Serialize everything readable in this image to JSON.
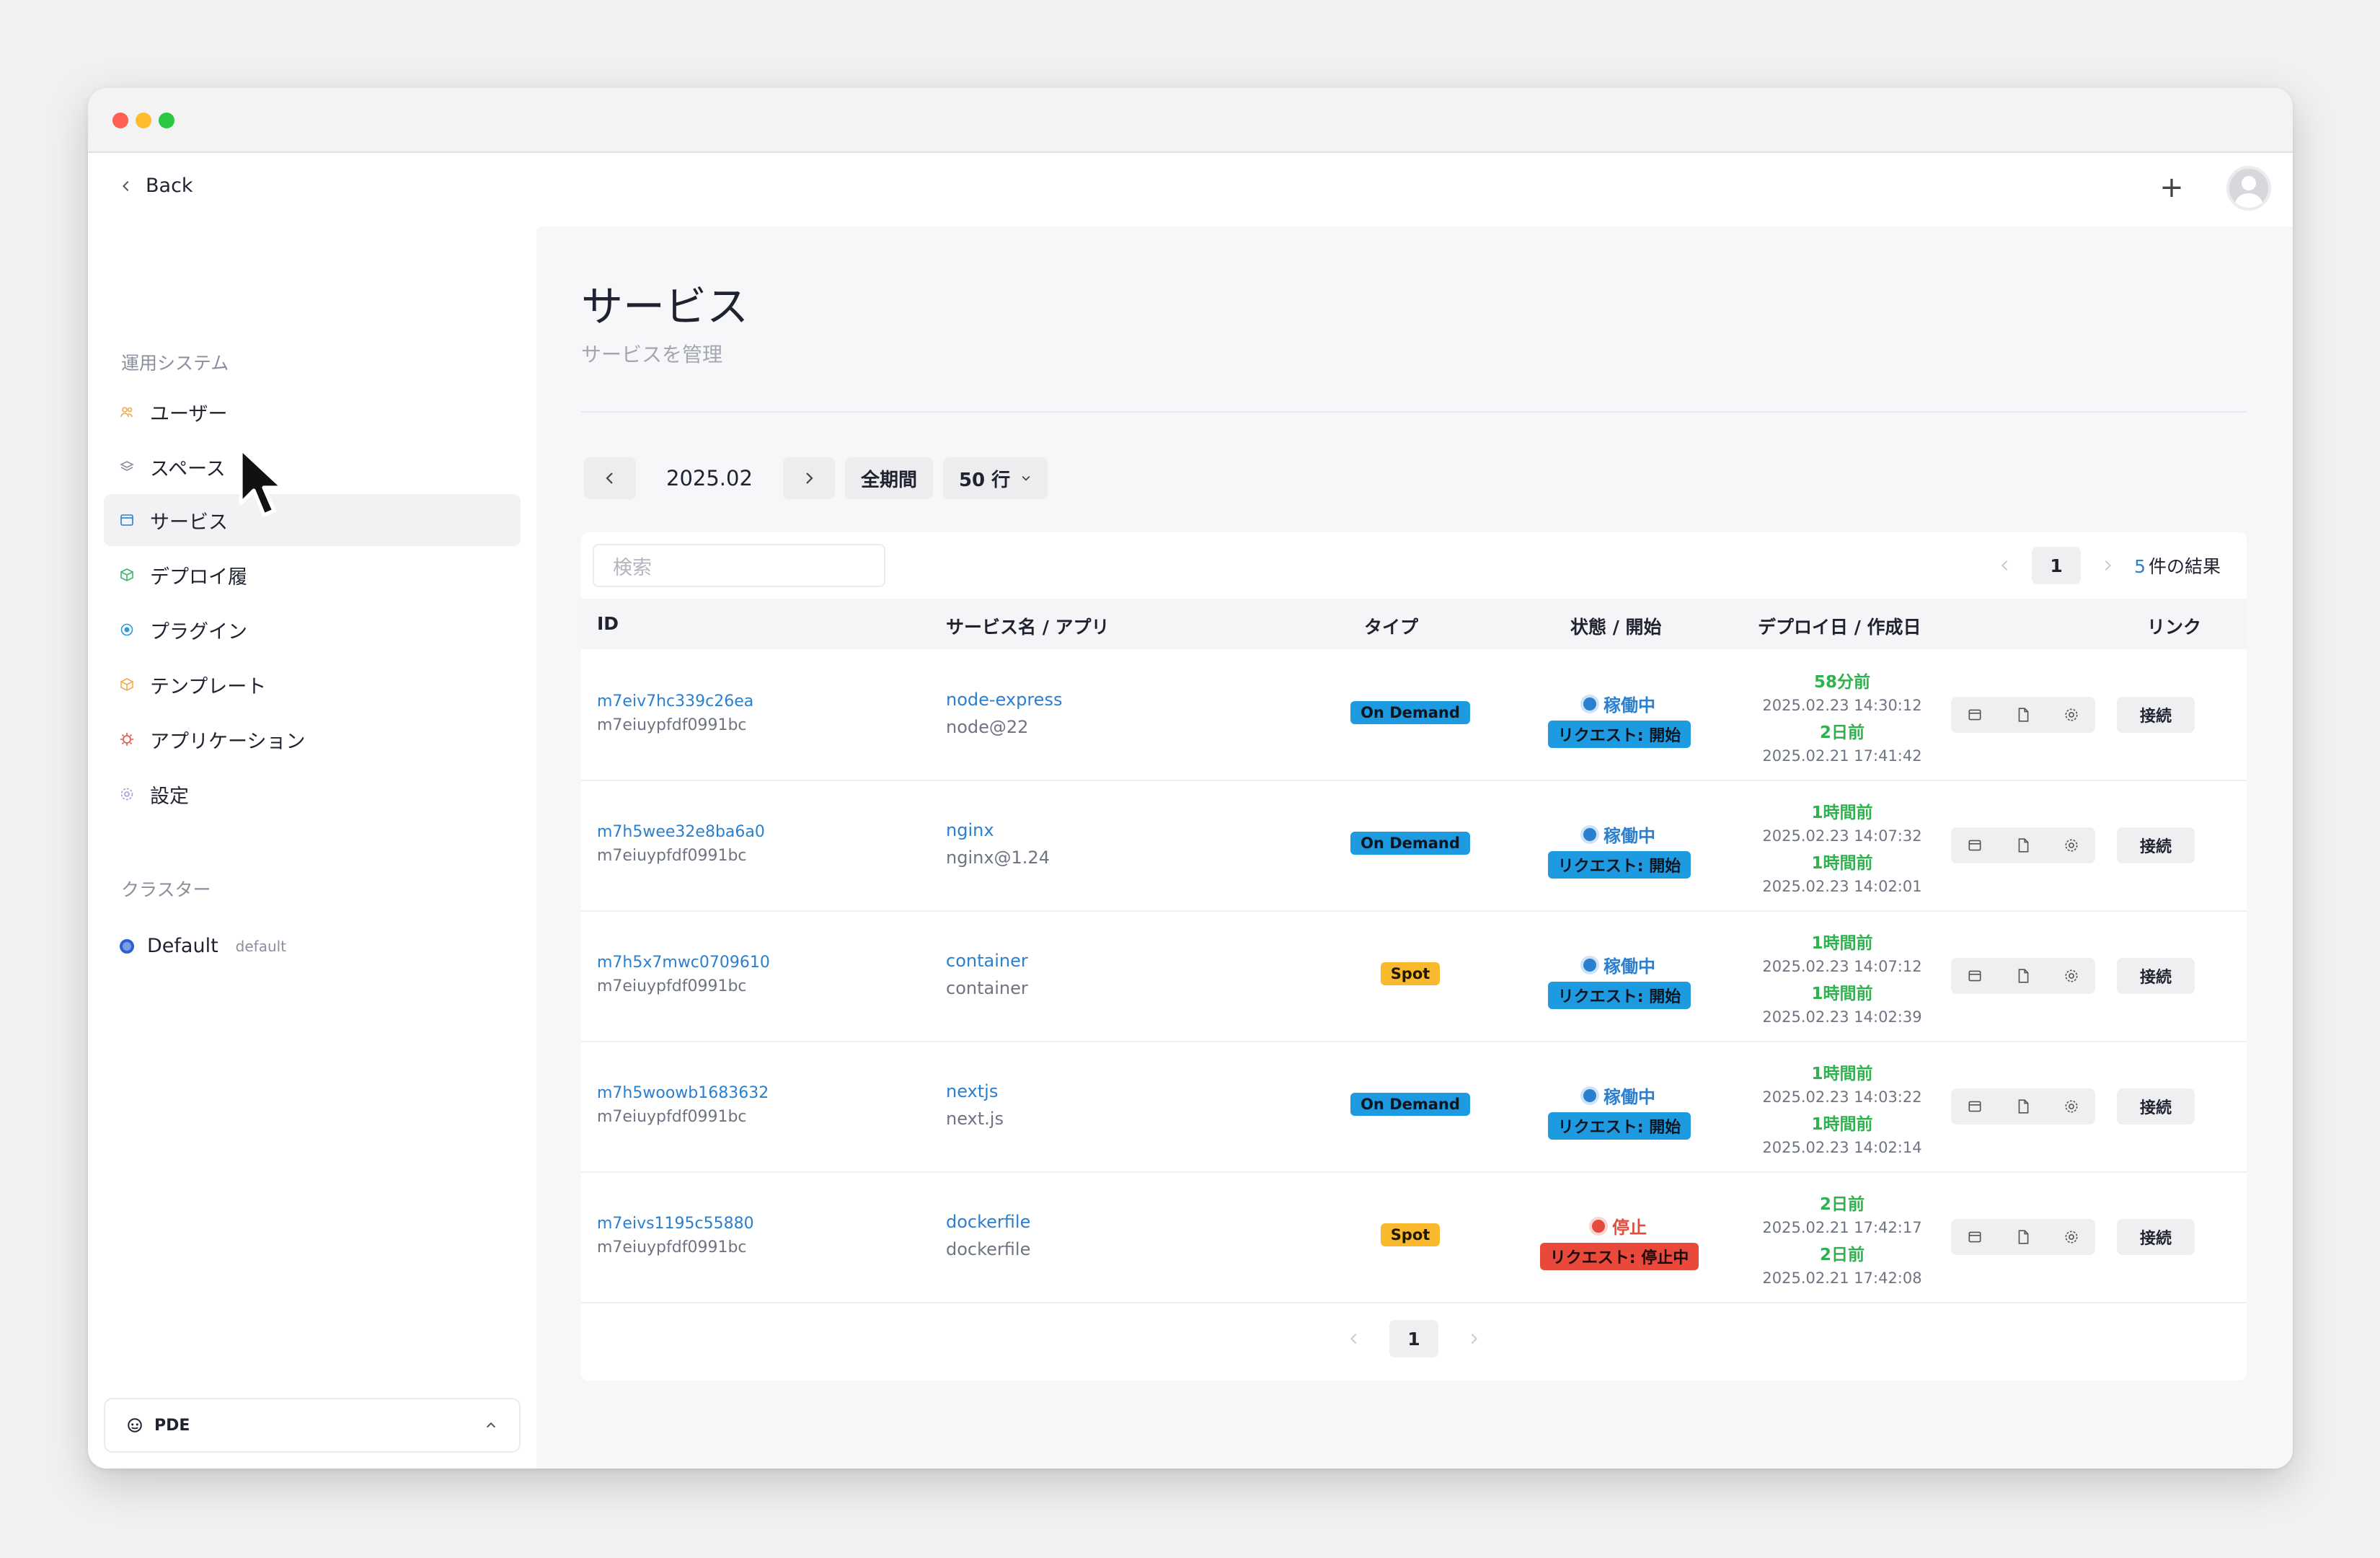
{
  "nav": {
    "back_label": "Back"
  },
  "sidebar": {
    "section_system": "運用システム",
    "items": [
      {
        "label": "ユーザー",
        "icon": "users-icon"
      },
      {
        "label": "スペース",
        "icon": "layers-icon"
      },
      {
        "label": "サービス",
        "icon": "window-icon"
      },
      {
        "label": "デプロイ履",
        "icon": "box-icon"
      },
      {
        "label": "プラグイン",
        "icon": "plugin-icon"
      },
      {
        "label": "テンプレート",
        "icon": "template-icon"
      },
      {
        "label": "アプリケーション",
        "icon": "app-icon"
      },
      {
        "label": "設定",
        "icon": "gear-icon"
      }
    ],
    "section_cluster": "クラスター",
    "cluster": {
      "name": "Default",
      "sub": "default"
    },
    "footer": {
      "label": "PDE"
    }
  },
  "page": {
    "title": "サービス",
    "subtitle": "サービスを管理"
  },
  "toolbar": {
    "month": "2025.02",
    "all_period": "全期間",
    "rows": "50 行"
  },
  "table": {
    "search_placeholder": "検索",
    "page": "1",
    "result_count": "5",
    "result_suffix": "件の結果",
    "headers": {
      "id": "ID",
      "service": "サービス名 / アプリ",
      "type": "タイプ",
      "status": "状態 / 開始",
      "dates": "デプロイ日 / 作成日",
      "link": "リンク"
    },
    "rows": [
      {
        "id": "m7eiv7hc339c26ea",
        "owner": "m7eiuypfdf0991bc",
        "service": "node-express",
        "app": "node@22",
        "type": "On Demand",
        "status": "稼働中",
        "request": "リクエスト: 開始",
        "deploy_rel": "58分前",
        "deploy_abs": "2025.02.23 14:30:12",
        "created_rel": "2日前",
        "created_abs": "2025.02.21 17:41:42",
        "connect": "接続"
      },
      {
        "id": "m7h5wee32e8ba6a0",
        "owner": "m7eiuypfdf0991bc",
        "service": "nginx",
        "app": "nginx@1.24",
        "type": "On Demand",
        "status": "稼働中",
        "request": "リクエスト: 開始",
        "deploy_rel": "1時間前",
        "deploy_abs": "2025.02.23 14:07:32",
        "created_rel": "1時間前",
        "created_abs": "2025.02.23 14:02:01",
        "connect": "接続"
      },
      {
        "id": "m7h5x7mwc0709610",
        "owner": "m7eiuypfdf0991bc",
        "service": "container",
        "app": "container",
        "type": "Spot",
        "status": "稼働中",
        "request": "リクエスト: 開始",
        "deploy_rel": "1時間前",
        "deploy_abs": "2025.02.23 14:07:12",
        "created_rel": "1時間前",
        "created_abs": "2025.02.23 14:02:39",
        "connect": "接続"
      },
      {
        "id": "m7h5woowb1683632",
        "owner": "m7eiuypfdf0991bc",
        "service": "nextjs",
        "app": "next.js",
        "type": "On Demand",
        "status": "稼働中",
        "request": "リクエスト: 開始",
        "deploy_rel": "1時間前",
        "deploy_abs": "2025.02.23 14:03:22",
        "created_rel": "1時間前",
        "created_abs": "2025.02.23 14:02:14",
        "connect": "接続"
      },
      {
        "id": "m7eivs1195c55880",
        "owner": "m7eiuypfdf0991bc",
        "service": "dockerfile",
        "app": "dockerfile",
        "type": "Spot",
        "status": "停止",
        "request": "リクエスト: 停止中",
        "deploy_rel": "2日前",
        "deploy_abs": "2025.02.21 17:42:17",
        "created_rel": "2日前",
        "created_abs": "2025.02.21 17:42:08",
        "connect": "接続"
      }
    ]
  },
  "colors": {
    "accent": "#2b7fcf",
    "running": "#2b7fcf",
    "stopped": "#e34b3e",
    "on_demand": "#1e9be0",
    "spot": "#f9b92c",
    "relative_time": "#2fb14e"
  }
}
